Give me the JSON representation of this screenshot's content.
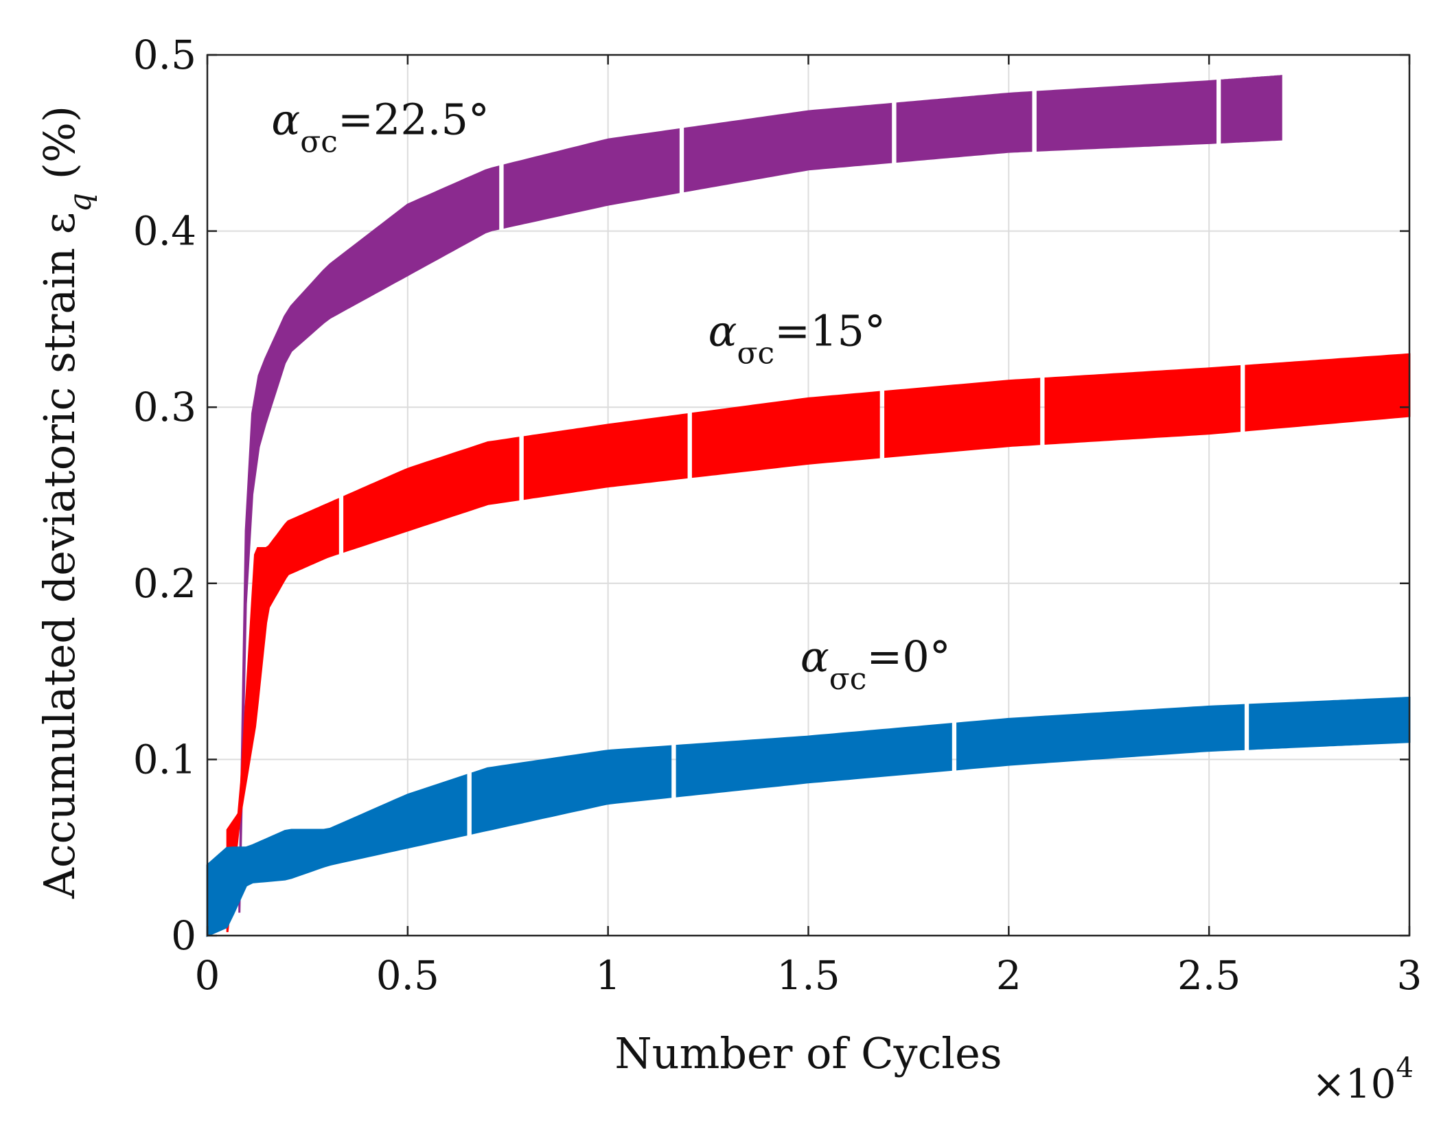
{
  "chart_data": {
    "type": "scatter",
    "xlabel": "Number of Cycles",
    "x_multiplier_label": "×10",
    "x_multiplier_exp": "4",
    "ylabel_main": "Accumulated deviatoric strain ε",
    "ylabel_sub": "q",
    "ylabel_unit": " (%)",
    "xlim": [
      0,
      3
    ],
    "ylim": [
      0,
      0.5
    ],
    "xticks": [
      "0",
      "0.5",
      "1",
      "1.5",
      "2",
      "2.5",
      "3"
    ],
    "yticks": [
      "0",
      "0.1",
      "0.2",
      "0.3",
      "0.4",
      "0.5"
    ],
    "grid": true,
    "series": [
      {
        "name": "α_σc=22.5°",
        "color": "#8B2A8F",
        "lower": [
          [
            0.08,
            0.013
          ],
          [
            0.1,
            0.23
          ],
          [
            0.13,
            0.28
          ],
          [
            0.2,
            0.33
          ],
          [
            0.3,
            0.35
          ],
          [
            0.5,
            0.375
          ],
          [
            0.7,
            0.4
          ],
          [
            1.0,
            0.415
          ],
          [
            1.5,
            0.435
          ],
          [
            2.0,
            0.445
          ],
          [
            2.5,
            0.45
          ],
          [
            2.68,
            0.452
          ]
        ],
        "upper": [
          [
            0.08,
            0.02
          ],
          [
            0.1,
            0.28
          ],
          [
            0.13,
            0.32
          ],
          [
            0.2,
            0.355
          ],
          [
            0.3,
            0.38
          ],
          [
            0.5,
            0.415
          ],
          [
            0.7,
            0.435
          ],
          [
            1.0,
            0.452
          ],
          [
            1.5,
            0.468
          ],
          [
            2.0,
            0.478
          ],
          [
            2.5,
            0.485
          ],
          [
            2.68,
            0.488
          ]
        ],
        "gaps": [
          0.73,
          1.18,
          1.71,
          2.06,
          2.52
        ],
        "label_x": 0.16,
        "label_y": 0.455,
        "label_main": "α",
        "label_sub": "σc",
        "label_rest": "=22.5°"
      },
      {
        "name": "α_σc=15°",
        "color": "#FF0000",
        "lower": [
          [
            0.05,
            0.002
          ],
          [
            0.08,
            0.065
          ],
          [
            0.12,
            0.12
          ],
          [
            0.15,
            0.185
          ],
          [
            0.2,
            0.205
          ],
          [
            0.3,
            0.215
          ],
          [
            0.5,
            0.23
          ],
          [
            0.7,
            0.245
          ],
          [
            1.0,
            0.255
          ],
          [
            1.5,
            0.268
          ],
          [
            2.0,
            0.278
          ],
          [
            2.5,
            0.285
          ],
          [
            3.0,
            0.295
          ]
        ],
        "upper": [
          [
            0.05,
            0.06
          ],
          [
            0.08,
            0.07
          ],
          [
            0.12,
            0.22
          ],
          [
            0.15,
            0.22
          ],
          [
            0.2,
            0.235
          ],
          [
            0.3,
            0.245
          ],
          [
            0.5,
            0.265
          ],
          [
            0.7,
            0.28
          ],
          [
            1.0,
            0.29
          ],
          [
            1.5,
            0.305
          ],
          [
            2.0,
            0.315
          ],
          [
            2.5,
            0.322
          ],
          [
            3.0,
            0.33
          ]
        ],
        "gaps": [
          0.33,
          0.78,
          1.2,
          1.68,
          2.08,
          2.58
        ],
        "label_x": 1.25,
        "label_y": 0.335,
        "label_main": "α",
        "label_sub": "σc",
        "label_rest": "=15°"
      },
      {
        "name": "α_σc=0°",
        "color": "#0072BD",
        "lower": [
          [
            0.0,
            0.0
          ],
          [
            0.05,
            0.005
          ],
          [
            0.1,
            0.03
          ],
          [
            0.2,
            0.032
          ],
          [
            0.3,
            0.04
          ],
          [
            0.5,
            0.05
          ],
          [
            0.7,
            0.06
          ],
          [
            1.0,
            0.075
          ],
          [
            1.5,
            0.087
          ],
          [
            2.0,
            0.097
          ],
          [
            2.5,
            0.105
          ],
          [
            3.0,
            0.11
          ]
        ],
        "upper": [
          [
            0.0,
            0.04
          ],
          [
            0.05,
            0.05
          ],
          [
            0.1,
            0.05
          ],
          [
            0.2,
            0.06
          ],
          [
            0.3,
            0.06
          ],
          [
            0.5,
            0.08
          ],
          [
            0.7,
            0.095
          ],
          [
            1.0,
            0.105
          ],
          [
            1.5,
            0.113
          ],
          [
            2.0,
            0.123
          ],
          [
            2.5,
            0.13
          ],
          [
            3.0,
            0.135
          ]
        ],
        "gaps": [
          0.65,
          1.16,
          1.86,
          2.59
        ],
        "label_x": 1.48,
        "label_y": 0.15,
        "label_main": "α",
        "label_sub": "σc",
        "label_rest": "=0°"
      }
    ]
  }
}
